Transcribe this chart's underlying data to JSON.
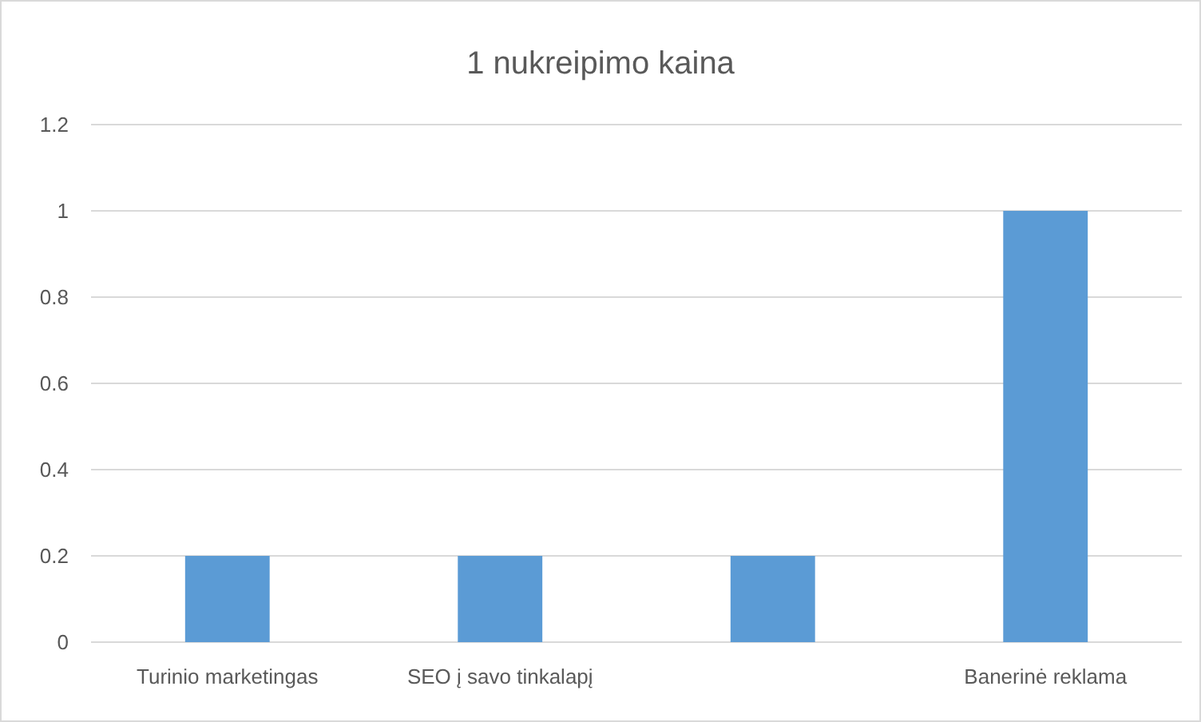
{
  "chart_data": {
    "type": "bar",
    "title": "1 nukreipimo kaina",
    "categories": [
      "Turinio marketingas",
      "SEO į savo tinkalapį",
      null,
      "Banerinė reklama"
    ],
    "values": [
      0.2,
      0.2,
      0.2,
      1
    ],
    "color": "#5b9bd5",
    "ylim": [
      0,
      1.2
    ],
    "yticks": [
      0,
      0.2,
      0.4,
      0.6,
      0.8,
      1,
      1.2
    ],
    "grid": "y"
  }
}
